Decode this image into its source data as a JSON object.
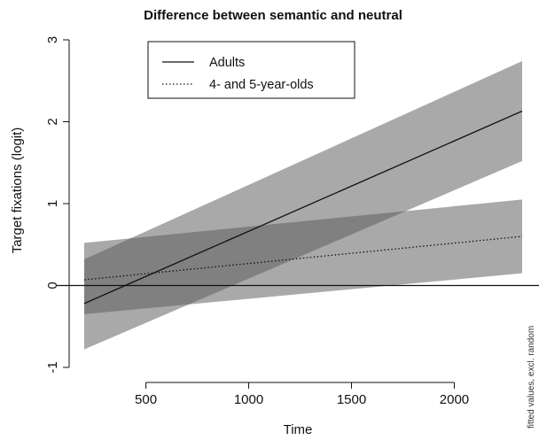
{
  "chart_data": {
    "type": "line",
    "title": "Difference between semantic and neutral",
    "xlabel": "Time",
    "ylabel": "Target fixations (logit)",
    "side_note": "fitted values, excl. random",
    "xlim": [
      200,
      2330
    ],
    "ylim": [
      -1,
      3
    ],
    "x_ticks": [
      500,
      1000,
      1500,
      2000
    ],
    "y_ticks": [
      -1,
      0,
      1,
      2,
      3
    ],
    "reference_line_y": 0,
    "legend": {
      "position": "top-left",
      "entries": [
        {
          "label": "Adults",
          "style": "solid"
        },
        {
          "label": "4- and 5-year-olds",
          "style": "dotted"
        }
      ]
    },
    "colors": {
      "band": "#a9a9a9",
      "line": "#111111"
    },
    "series": [
      {
        "name": "Adults",
        "style": "solid",
        "x": [
          200,
          2330
        ],
        "y": [
          -0.22,
          2.13
        ],
        "ci_lower": [
          -0.78,
          1.52
        ],
        "ci_upper": [
          0.32,
          2.74
        ]
      },
      {
        "name": "4- and 5-year-olds",
        "style": "dotted",
        "x": [
          200,
          2330
        ],
        "y": [
          0.07,
          0.6
        ],
        "ci_lower": [
          -0.35,
          0.15
        ],
        "ci_upper": [
          0.52,
          1.05
        ]
      }
    ]
  }
}
